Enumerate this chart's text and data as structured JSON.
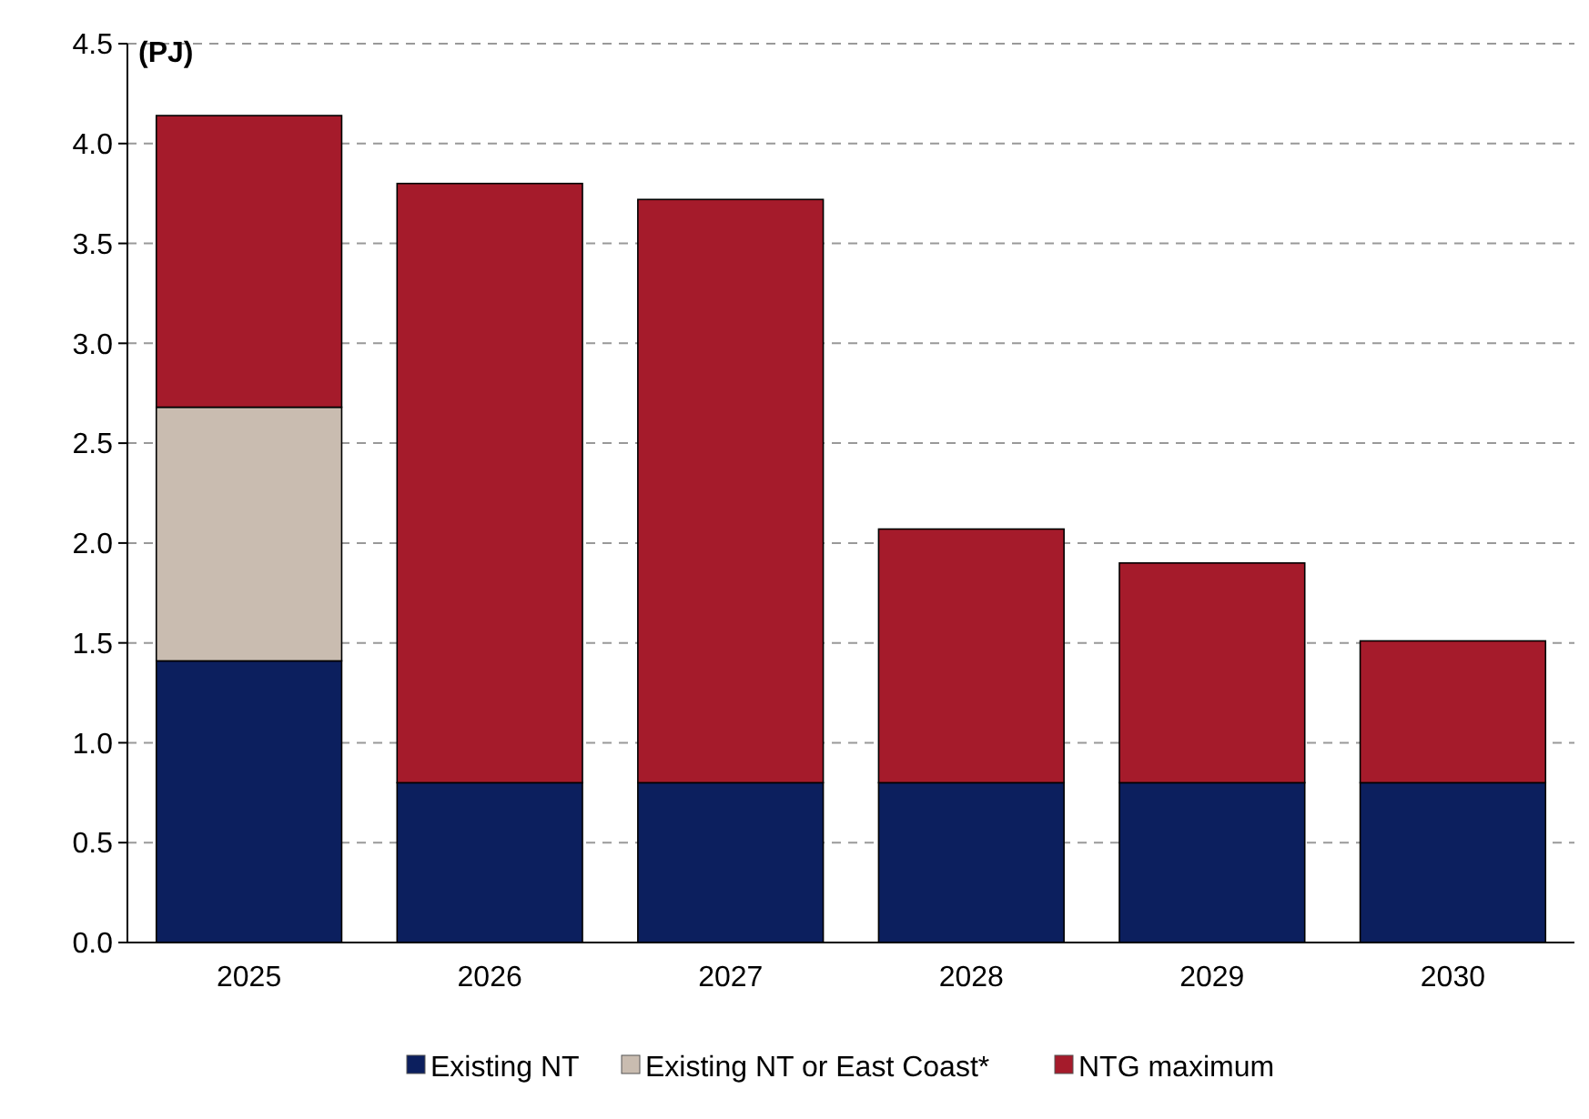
{
  "chart_data": {
    "type": "bar",
    "stacked": true,
    "ylabel": "(PJ)",
    "categories": [
      "2025",
      "2026",
      "2027",
      "2028",
      "2029",
      "2030"
    ],
    "series": [
      {
        "name": "Existing NT",
        "color": "#0c1f5e",
        "values": [
          1.41,
          0.8,
          0.8,
          0.8,
          0.8,
          0.8
        ]
      },
      {
        "name": "Existing NT or East Coast*",
        "color": "#c9bcb0",
        "values": [
          1.27,
          null,
          null,
          null,
          null,
          null
        ]
      },
      {
        "name": "NTG maximum",
        "color": "#a51b2b",
        "values": [
          1.46,
          3.0,
          2.92,
          1.27,
          1.1,
          0.71
        ]
      }
    ],
    "ylim": [
      0,
      4.5
    ],
    "yticks": [
      {
        "value": 0,
        "label": "0.0"
      },
      {
        "value": 0.5,
        "label": "0.5"
      },
      {
        "value": 1,
        "label": "1.0"
      },
      {
        "value": 1.5,
        "label": "1.5"
      },
      {
        "value": 2,
        "label": "2.0"
      },
      {
        "value": 2.5,
        "label": "2.5"
      },
      {
        "value": 3,
        "label": "3.0"
      },
      {
        "value": 3.5,
        "label": "3.5"
      },
      {
        "value": 4,
        "label": "4.0"
      },
      {
        "value": 4.5,
        "label": "4.5"
      }
    ],
    "grid": "y",
    "legend": "bottom"
  }
}
